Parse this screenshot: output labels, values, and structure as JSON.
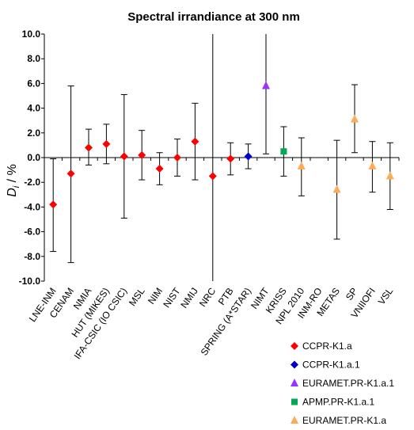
{
  "chart_data": {
    "type": "scatter",
    "title": "Spectral irrandiance at 300 nm",
    "xlabel": "",
    "ylabel": "D",
    "ylabel_sub": "i",
    "ylabel_unit": " / %",
    "ylim": [
      -10,
      10
    ],
    "yticks": [
      "10.0",
      "8.0",
      "6.0",
      "4.0",
      "2.0",
      "0.0",
      "-2.0",
      "-4.0",
      "-6.0",
      "-8.0",
      "-10.0"
    ],
    "ytick_values": [
      10,
      8,
      6,
      4,
      2,
      0,
      -2,
      -4,
      -6,
      -8,
      -10
    ],
    "grid": false,
    "legend_position": "bottom-right",
    "categories": [
      "LNE-INM",
      "CENAM",
      "NMIA",
      "HUT (MIKES)",
      "IFA-CSIC (IO CSIC)",
      "MSL",
      "NIM",
      "NIST",
      "NMIJ",
      "NRC",
      "PTB",
      "SPRING (A*STAR)",
      "NIMT",
      "KRISS",
      "NPL 2010",
      "INM-RO",
      "METAS",
      "SP",
      "VNIIOFI",
      "VSL"
    ],
    "series": [
      {
        "name": "CCPR-K1.a",
        "color": "#ff0000",
        "marker": "diamond",
        "points": [
          {
            "category": "LNE-INM",
            "y": -3.8,
            "err_low": -7.6,
            "err_high": -0.1
          },
          {
            "category": "CENAM",
            "y": -1.3,
            "err_low": -8.5,
            "err_high": 5.8
          },
          {
            "category": "NMIA",
            "y": 0.8,
            "err_low": -0.6,
            "err_high": 2.3
          },
          {
            "category": "HUT (MIKES)",
            "y": 1.1,
            "err_low": -0.5,
            "err_high": 2.7
          },
          {
            "category": "IFA-CSIC (IO CSIC)",
            "y": 0.1,
            "err_low": -4.9,
            "err_high": 5.1
          },
          {
            "category": "MSL",
            "y": 0.2,
            "err_low": -1.8,
            "err_high": 2.2
          },
          {
            "category": "NIM",
            "y": -0.9,
            "err_low": -2.2,
            "err_high": 0.4
          },
          {
            "category": "NIST",
            "y": 0.0,
            "err_low": -1.5,
            "err_high": 1.5
          },
          {
            "category": "NMIJ",
            "y": 1.3,
            "err_low": -1.8,
            "err_high": 4.4
          },
          {
            "category": "NRC",
            "y": -1.5,
            "err_low": -10.0,
            "err_high": 10.0
          },
          {
            "category": "PTB",
            "y": -0.1,
            "err_low": -1.4,
            "err_high": 1.2
          }
        ]
      },
      {
        "name": "CCPR-K1.a.1",
        "color": "#0000cc",
        "marker": "diamond",
        "points": [
          {
            "category": "SPRING (A*STAR)",
            "y": 0.1,
            "err_low": -0.9,
            "err_high": 1.1
          }
        ]
      },
      {
        "name": "EURAMET.PR-K1.a.1",
        "color": "#9933ff",
        "marker": "triangle",
        "points": [
          {
            "category": "NIMT",
            "y": 5.8,
            "err_low": 0.3,
            "err_high": 10.0
          }
        ]
      },
      {
        "name": "APMP.PR-K1.a.1",
        "color": "#00aa55",
        "marker": "square",
        "points": [
          {
            "category": "KRISS",
            "y": 0.5,
            "err_low": -1.5,
            "err_high": 2.5
          }
        ]
      },
      {
        "name": "EURAMET.PR-K1.a",
        "color": "#ffaa55",
        "marker": "triangle",
        "points": [
          {
            "category": "NPL 2010",
            "y": -0.7,
            "err_low": -3.1,
            "err_high": 1.6
          },
          {
            "category": "METAS",
            "y": -2.6,
            "err_low": -6.6,
            "err_high": 1.4
          },
          {
            "category": "SP",
            "y": 3.1,
            "err_low": 0.4,
            "err_high": 5.9
          },
          {
            "category": "VNIIOFI",
            "y": -0.7,
            "err_low": -2.8,
            "err_high": 1.3
          },
          {
            "category": "VSL",
            "y": -1.5,
            "err_low": -4.2,
            "err_high": 1.2
          }
        ]
      }
    ]
  }
}
